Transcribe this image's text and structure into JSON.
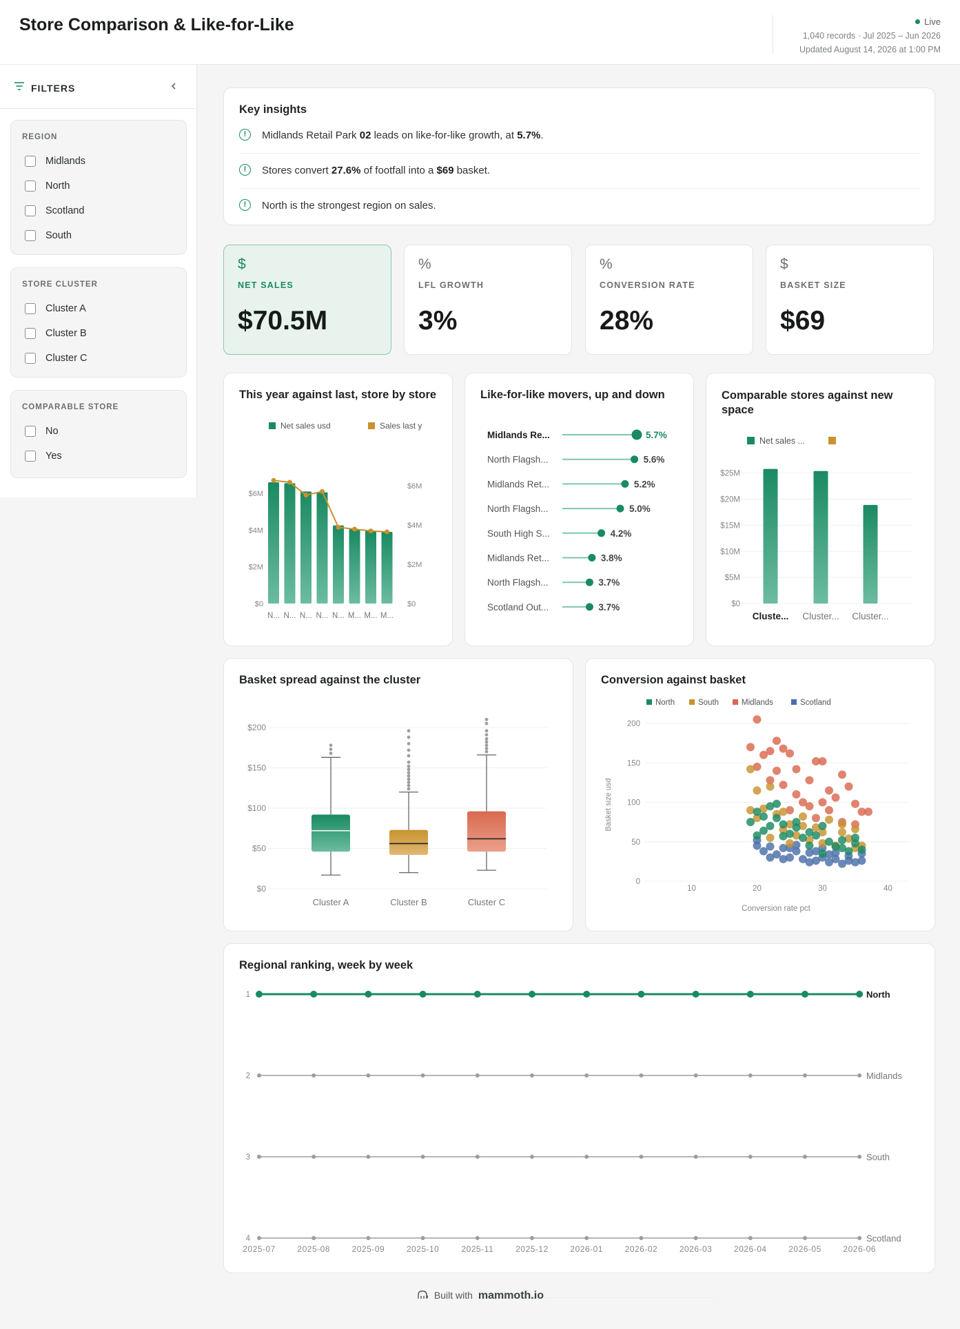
{
  "header": {
    "title": "Store Comparison & Like-for-Like",
    "live_label": "Live",
    "meta": "1,040 records · Jul 2025 – Jun 2026",
    "updated": "Updated August 14, 2026 at 1:00 PM"
  },
  "sidebar": {
    "title": "FILTERS",
    "groups": [
      {
        "title": "REGION",
        "options": [
          "Midlands",
          "North",
          "Scotland",
          "South"
        ]
      },
      {
        "title": "STORE CLUSTER",
        "options": [
          "Cluster A",
          "Cluster B",
          "Cluster C"
        ]
      },
      {
        "title": "COMPARABLE STORE",
        "options": [
          "No",
          "Yes"
        ]
      }
    ]
  },
  "insights": {
    "title": "Key insights",
    "items": [
      {
        "pre": "Midlands Retail Park ",
        "b1": "02",
        "mid": " leads on like-for-like growth, at ",
        "b2": "5.7%",
        "post": "."
      },
      {
        "pre": "Stores convert ",
        "b1": "27.6%",
        "mid": " of footfall into a ",
        "b2": "$69",
        "post": " basket."
      },
      {
        "pre": "North is the strongest region on sales.",
        "b1": "",
        "mid": "",
        "b2": "",
        "post": ""
      }
    ]
  },
  "kpis": [
    {
      "icon": "$",
      "label": "NET SALES",
      "value": "$70.5M"
    },
    {
      "icon": "%",
      "label": "LFL GROWTH",
      "value": "3%"
    },
    {
      "icon": "%",
      "label": "CONVERSION RATE",
      "value": "28%"
    },
    {
      "icon": "$",
      "label": "BASKET SIZE",
      "value": "$69"
    }
  ],
  "colors": {
    "accent": "#1a8a62",
    "gold": "#c8922e",
    "red": "#d9684f",
    "blue": "#4a6fa8"
  },
  "chart_data": [
    {
      "type": "bar",
      "title": "This year against last, store by store",
      "categories": [
        "N...",
        "N...",
        "N...",
        "N...",
        "N...",
        "M...",
        "M...",
        "M..."
      ],
      "series": [
        {
          "name": "Net sales usd",
          "values": [
            6.6,
            6.55,
            6.1,
            6.05,
            4.25,
            4.05,
            3.95,
            3.9
          ]
        },
        {
          "name": "Sales last yea",
          "values": [
            6.7,
            6.6,
            5.9,
            6.1,
            4.15,
            4.05,
            3.95,
            3.9
          ]
        }
      ],
      "yticks_left": [
        "$0",
        "$2M",
        "$4M",
        "$6M"
      ],
      "yticks_right": [
        "$0",
        "$2M",
        "$4M",
        "$6M"
      ]
    },
    {
      "type": "lollipop",
      "title": "Like-for-like movers, up and down",
      "categories": [
        "Midlands Re...",
        "North Flagsh...",
        "Midlands Ret...",
        "North Flagsh...",
        "South High S...",
        "Midlands Ret...",
        "North Flagsh...",
        "Scotland Out..."
      ],
      "values": [
        5.7,
        5.6,
        5.2,
        5.0,
        4.2,
        3.8,
        3.7,
        3.7
      ],
      "labels": [
        "5.7%",
        "5.6%",
        "5.2%",
        "5.0%",
        "4.2%",
        "3.8%",
        "3.7%",
        "3.7%"
      ]
    },
    {
      "type": "bar",
      "title": "Comparable stores against new space",
      "categories": [
        "Cluste...",
        "Cluster...",
        "Cluster..."
      ],
      "series": [
        {
          "name": "Net sales ...",
          "values": [
            25.8,
            25.4,
            18.9
          ]
        }
      ],
      "yticks": [
        "$0",
        "$5M",
        "$10M",
        "$15M",
        "$20M",
        "$25M"
      ]
    },
    {
      "type": "box",
      "title": "Basket spread against the cluster",
      "categories": [
        "Cluster A",
        "Cluster B",
        "Cluster C"
      ],
      "boxes": [
        {
          "min": 17,
          "q1": 46,
          "median": 72,
          "q3": 92,
          "max": 163,
          "outliers": [
            168,
            173,
            178
          ]
        },
        {
          "min": 20,
          "q1": 42,
          "median": 56,
          "q3": 73,
          "max": 120,
          "outliers": [
            124,
            128,
            132,
            136,
            140,
            144,
            148,
            152,
            157,
            165,
            172,
            180,
            188,
            196
          ]
        },
        {
          "min": 23,
          "q1": 46,
          "median": 62,
          "q3": 96,
          "max": 166,
          "outliers": [
            170,
            174,
            178,
            182,
            186,
            191,
            196,
            205,
            210
          ]
        }
      ],
      "yticks": [
        "$0",
        "$50",
        "$100",
        "$150",
        "$200"
      ]
    },
    {
      "type": "scatter",
      "title": "Conversion against basket",
      "xlabel": "Conversion rate pct",
      "ylabel": "Basket size usd",
      "xticks": [
        "10",
        "20",
        "30",
        "40"
      ],
      "yticks": [
        "0",
        "50",
        "100",
        "150",
        "200"
      ],
      "legend": [
        "North",
        "South",
        "Midlands",
        "Scotland"
      ],
      "series": [
        {
          "name": "North",
          "points": [
            [
              19,
              75
            ],
            [
              20,
              88
            ],
            [
              21,
              64
            ],
            [
              22,
              95
            ],
            [
              23,
              80
            ],
            [
              24,
              72
            ],
            [
              25,
              60
            ],
            [
              26,
              68
            ],
            [
              27,
              55
            ],
            [
              28,
              62
            ],
            [
              29,
              58
            ],
            [
              30,
              70
            ],
            [
              31,
              50
            ],
            [
              32,
              44
            ],
            [
              33,
              52
            ],
            [
              34,
              38
            ],
            [
              35,
              48
            ],
            [
              36,
              40
            ],
            [
              21,
              82
            ],
            [
              22,
              70
            ],
            [
              23,
              98
            ],
            [
              24,
              57
            ],
            [
              26,
              75
            ],
            [
              28,
              45
            ],
            [
              30,
              35
            ],
            [
              33,
              42
            ],
            [
              35,
              55
            ],
            [
              20,
              58
            ]
          ]
        },
        {
          "name": "South",
          "points": [
            [
              19,
              142
            ],
            [
              20,
              115
            ],
            [
              21,
              92
            ],
            [
              22,
              120
            ],
            [
              23,
              85
            ],
            [
              24,
              65
            ],
            [
              25,
              72
            ],
            [
              26,
              58
            ],
            [
              27,
              82
            ],
            [
              28,
              52
            ],
            [
              29,
              68
            ],
            [
              30,
              48
            ],
            [
              31,
              78
            ],
            [
              32,
              45
            ],
            [
              33,
              62
            ],
            [
              34,
              54
            ],
            [
              35,
              66
            ],
            [
              36,
              45
            ],
            [
              19,
              90
            ],
            [
              22,
              55
            ],
            [
              24,
              88
            ],
            [
              27,
              70
            ],
            [
              30,
              62
            ],
            [
              33,
              72
            ],
            [
              35,
              42
            ],
            [
              20,
              80
            ],
            [
              25,
              48
            ]
          ]
        },
        {
          "name": "Midlands",
          "points": [
            [
              20,
              205
            ],
            [
              19,
              170
            ],
            [
              21,
              160
            ],
            [
              22,
              165
            ],
            [
              23,
              178
            ],
            [
              24,
              168
            ],
            [
              25,
              162
            ],
            [
              20,
              145
            ],
            [
              22,
              128
            ],
            [
              24,
              122
            ],
            [
              26,
              110
            ],
            [
              27,
              100
            ],
            [
              28,
              128
            ],
            [
              29,
              152
            ],
            [
              30,
              152
            ],
            [
              31,
              115
            ],
            [
              32,
              106
            ],
            [
              33,
              135
            ],
            [
              34,
              120
            ],
            [
              35,
              98
            ],
            [
              36,
              88
            ],
            [
              37,
              88
            ],
            [
              25,
              90
            ],
            [
              29,
              80
            ],
            [
              31,
              90
            ],
            [
              33,
              75
            ],
            [
              35,
              72
            ],
            [
              28,
              95
            ],
            [
              30,
              100
            ],
            [
              26,
              142
            ],
            [
              23,
              140
            ]
          ]
        },
        {
          "name": "Scotland",
          "points": [
            [
              20,
              52
            ],
            [
              21,
              38
            ],
            [
              22,
              30
            ],
            [
              23,
              34
            ],
            [
              24,
              42
            ],
            [
              25,
              30
            ],
            [
              26,
              38
            ],
            [
              27,
              28
            ],
            [
              28,
              36
            ],
            [
              29,
              26
            ],
            [
              30,
              30
            ],
            [
              31,
              24
            ],
            [
              32,
              28
            ],
            [
              33,
              22
            ],
            [
              34,
              32
            ],
            [
              35,
              24
            ],
            [
              36,
              26
            ],
            [
              22,
              44
            ],
            [
              24,
              28
            ],
            [
              26,
              46
            ],
            [
              28,
              24
            ],
            [
              30,
              42
            ],
            [
              32,
              36
            ],
            [
              34,
              26
            ],
            [
              20,
              45
            ],
            [
              25,
              42
            ],
            [
              29,
              38
            ],
            [
              31,
              34
            ],
            [
              36,
              35
            ]
          ]
        }
      ]
    },
    {
      "type": "line",
      "title": "Regional ranking, week by week",
      "x": [
        "2025-07",
        "2025-08",
        "2025-09",
        "2025-10",
        "2025-11",
        "2025-12",
        "2026-01",
        "2026-02",
        "2026-03",
        "2026-04",
        "2026-05",
        "2026-06"
      ],
      "yticks": [
        "1",
        "2",
        "3",
        "4"
      ],
      "series": [
        {
          "name": "North",
          "rank": 1
        },
        {
          "name": "Midlands",
          "rank": 2
        },
        {
          "name": "South",
          "rank": 3
        },
        {
          "name": "Scotland",
          "rank": 4
        }
      ]
    }
  ],
  "footer": {
    "built_with": "Built with",
    "brand": "mammoth.io"
  }
}
